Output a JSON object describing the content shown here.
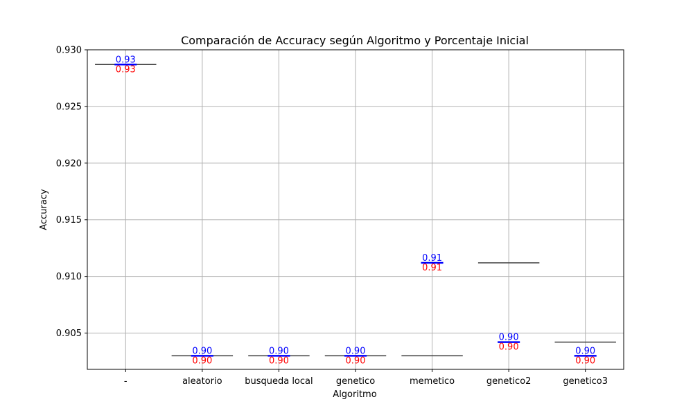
{
  "chart_data": {
    "type": "box",
    "title": "Comparación de Accuracy según Algoritmo y Porcentaje Inicial",
    "xlabel": "Algoritmo",
    "ylabel": "Accuracy",
    "ylim": [
      0.9018,
      0.93
    ],
    "yticks": [
      "0.930",
      "0.925",
      "0.920",
      "0.915",
      "0.910",
      "0.905"
    ],
    "ytick_values": [
      0.93,
      0.925,
      0.92,
      0.915,
      0.91,
      0.905
    ],
    "grid": true,
    "categories": [
      "-",
      "aleatorio",
      "busqueda local",
      "genetico",
      "memetico",
      "genetico2",
      "genetico3"
    ],
    "boxes": [
      {
        "category": "-",
        "value": 0.9287
      },
      {
        "category": "aleatorio",
        "value": 0.903
      },
      {
        "category": "busqueda local",
        "value": 0.903
      },
      {
        "category": "genetico",
        "value": 0.903
      },
      {
        "category": "memetico",
        "value": 0.903
      },
      {
        "category": "genetico2",
        "value": 0.9112
      },
      {
        "category": "genetico3",
        "value": 0.9042
      }
    ],
    "means": [
      {
        "category": "-",
        "value": 0.9287,
        "label_top": "0.93",
        "label_bottom": "0.93"
      },
      {
        "category": "aleatorio",
        "value": 0.903,
        "label_top": "0.90",
        "label_bottom": "0.90"
      },
      {
        "category": "busqueda local",
        "value": 0.903,
        "label_top": "0.90",
        "label_bottom": "0.90"
      },
      {
        "category": "genetico",
        "value": 0.903,
        "label_top": "0.90",
        "label_bottom": "0.90"
      },
      {
        "category": "memetico",
        "value": 0.9112,
        "label_top": "0.91",
        "label_bottom": "0.91"
      },
      {
        "category": "genetico2",
        "value": 0.9042,
        "label_top": "0.90",
        "label_bottom": "0.90"
      },
      {
        "category": "genetico3",
        "value": 0.903,
        "label_top": "0.90",
        "label_bottom": "0.90"
      }
    ],
    "colors": {
      "mean_line": "#0000ff",
      "label_top": "#0000ff",
      "label_bottom": "#ff0000",
      "box_line": "#3d3d3d",
      "grid": "#b0b0b0"
    }
  }
}
